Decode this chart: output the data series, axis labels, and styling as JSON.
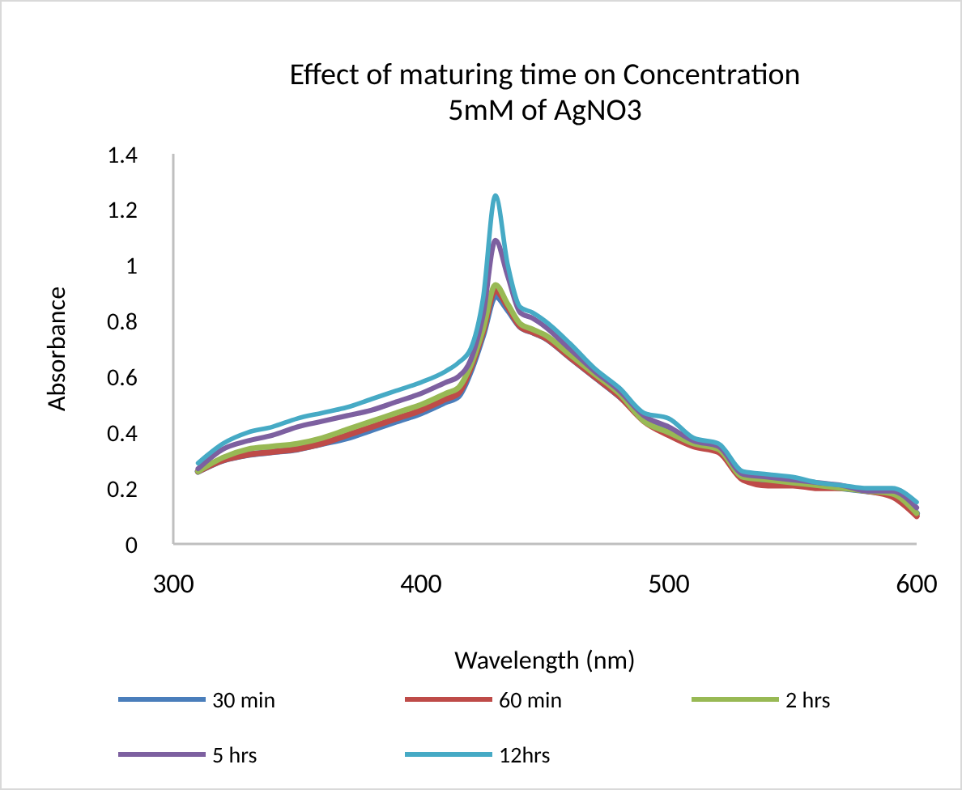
{
  "chart_data": {
    "type": "line",
    "title": "Effect of maturing time on Concentration",
    "subtitle": "5mM of AgNO3",
    "xlabel": "Wavelength (nm)",
    "ylabel": "Absorbance",
    "x": [
      310,
      320,
      330,
      340,
      350,
      360,
      370,
      380,
      390,
      400,
      410,
      415,
      420,
      425,
      430,
      435,
      440,
      445,
      450,
      460,
      470,
      480,
      490,
      500,
      510,
      520,
      530,
      540,
      550,
      560,
      570,
      580,
      590,
      600
    ],
    "series": [
      {
        "name": "30 min",
        "color": "#4a7ebb",
        "values": [
          0.26,
          0.3,
          0.32,
          0.33,
          0.34,
          0.36,
          0.38,
          0.41,
          0.44,
          0.47,
          0.51,
          0.53,
          0.62,
          0.75,
          0.89,
          0.84,
          0.78,
          0.76,
          0.74,
          0.67,
          0.6,
          0.53,
          0.45,
          0.4,
          0.36,
          0.34,
          0.24,
          0.22,
          0.22,
          0.21,
          0.2,
          0.19,
          0.18,
          0.11
        ]
      },
      {
        "name": "60 min",
        "color": "#be4b48",
        "values": [
          0.26,
          0.3,
          0.32,
          0.33,
          0.34,
          0.36,
          0.39,
          0.42,
          0.45,
          0.48,
          0.52,
          0.54,
          0.63,
          0.76,
          0.91,
          0.85,
          0.78,
          0.76,
          0.74,
          0.67,
          0.6,
          0.53,
          0.44,
          0.39,
          0.35,
          0.33,
          0.23,
          0.21,
          0.21,
          0.2,
          0.2,
          0.19,
          0.17,
          0.1
        ]
      },
      {
        "name": "2 hrs",
        "color": "#98b954",
        "values": [
          0.26,
          0.31,
          0.34,
          0.35,
          0.36,
          0.38,
          0.41,
          0.44,
          0.47,
          0.5,
          0.54,
          0.56,
          0.64,
          0.77,
          0.93,
          0.86,
          0.79,
          0.77,
          0.75,
          0.68,
          0.61,
          0.54,
          0.44,
          0.4,
          0.36,
          0.34,
          0.24,
          0.23,
          0.22,
          0.21,
          0.2,
          0.19,
          0.18,
          0.11
        ]
      },
      {
        "name": "5 hrs",
        "color": "#7d60a0",
        "values": [
          0.27,
          0.34,
          0.37,
          0.39,
          0.42,
          0.44,
          0.46,
          0.48,
          0.51,
          0.54,
          0.58,
          0.6,
          0.66,
          0.82,
          1.09,
          0.96,
          0.83,
          0.81,
          0.78,
          0.7,
          0.62,
          0.55,
          0.46,
          0.42,
          0.37,
          0.35,
          0.25,
          0.24,
          0.23,
          0.22,
          0.21,
          0.19,
          0.19,
          0.13
        ]
      },
      {
        "name": "12hrs",
        "color": "#46aac5",
        "values": [
          0.29,
          0.36,
          0.4,
          0.42,
          0.45,
          0.47,
          0.49,
          0.52,
          0.55,
          0.58,
          0.62,
          0.65,
          0.7,
          0.88,
          1.25,
          1.0,
          0.85,
          0.83,
          0.8,
          0.72,
          0.63,
          0.56,
          0.47,
          0.45,
          0.38,
          0.36,
          0.26,
          0.25,
          0.24,
          0.22,
          0.21,
          0.2,
          0.2,
          0.15
        ]
      }
    ],
    "xlim": [
      300,
      600
    ],
    "xticks": [
      300,
      400,
      500,
      600
    ],
    "ylim": [
      0,
      1.4
    ],
    "yticks": [
      0,
      0.2,
      0.4,
      0.6,
      0.8,
      1,
      1.2,
      1.4
    ],
    "grid": false,
    "legend": "bottom",
    "marker": "none",
    "line_style": "solid"
  }
}
